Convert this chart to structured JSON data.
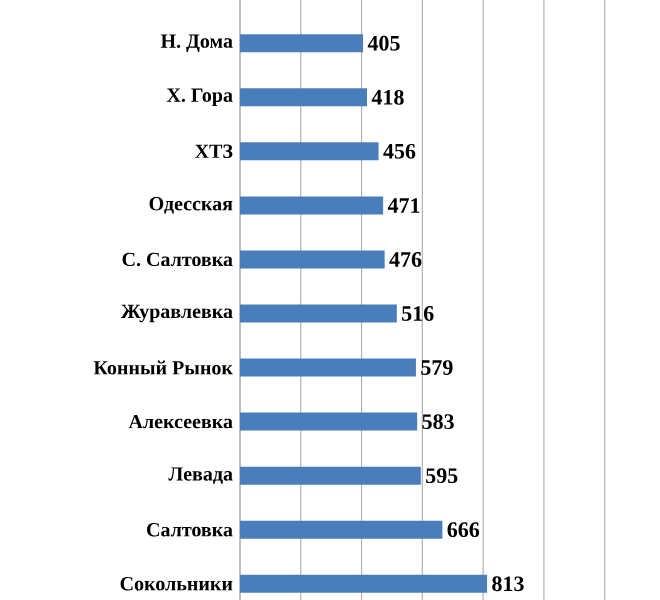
{
  "chart_data": {
    "type": "bar",
    "orientation": "horizontal",
    "categories": [
      "Н. Дома",
      "Х. Гора",
      "ХТЗ",
      "Одесская",
      "С. Салтовка",
      "Журавлевка",
      "Конный Рынок",
      "Алексеевка",
      "Левада",
      "Салтовка",
      "Сокольники"
    ],
    "values": [
      405,
      418,
      456,
      471,
      476,
      516,
      579,
      583,
      595,
      666,
      813
    ],
    "color": "#4a7ebb",
    "data_labels": true,
    "grid": "x",
    "tick_labels": "y"
  }
}
